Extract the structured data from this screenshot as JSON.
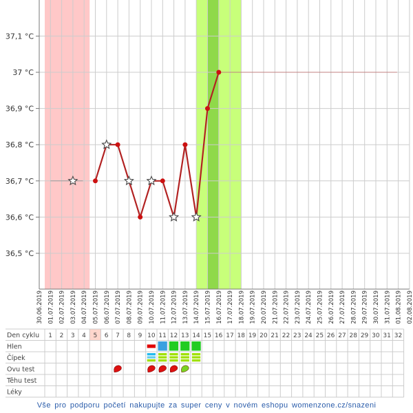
{
  "chart_data": {
    "type": "line",
    "x": [
      "30.06.2019",
      "01.07.2019",
      "02.07.2019",
      "03.07.2019",
      "04.07.2019",
      "05.07.2019",
      "06.07.2019",
      "07.07.2019",
      "08.07.2019",
      "09.07.2019",
      "10.07.2019",
      "11.07.2019",
      "12.07.2019",
      "13.07.2019",
      "14.07.2019",
      "15.07.2019",
      "16.07.2019",
      "17.07.2019",
      "18.07.2019",
      "19.07.2019",
      "20.07.2019",
      "21.07.2019",
      "22.07.2019",
      "23.07.2019",
      "24.07.2019",
      "25.07.2019",
      "26.07.2019",
      "27.07.2019",
      "28.07.2019",
      "29.07.2019",
      "30.07.2019",
      "31.07.2019",
      "01.08.2019",
      "02.08.2019"
    ],
    "y_ticks": [
      {
        "value": 37.1,
        "label": "37,1 °C"
      },
      {
        "value": 37.0,
        "label": "37 °C"
      },
      {
        "value": 36.9,
        "label": "36,9 °C"
      },
      {
        "value": 36.8,
        "label": "36,8 °C"
      },
      {
        "value": 36.7,
        "label": "36,7 °C"
      },
      {
        "value": 36.6,
        "label": "36,6 °C"
      },
      {
        "value": 36.5,
        "label": "36,5 °C"
      }
    ],
    "ylim": [
      36.4,
      37.2
    ],
    "grid": true,
    "series": [
      {
        "values": [
          {
            "x": "05.07.2019",
            "y": 36.7,
            "marker": "dot"
          },
          {
            "x": "06.07.2019",
            "y": 36.8,
            "marker": "star"
          },
          {
            "x": "07.07.2019",
            "y": 36.8,
            "marker": "dot"
          },
          {
            "x": "08.07.2019",
            "y": 36.7,
            "marker": "star"
          },
          {
            "x": "09.07.2019",
            "y": 36.6,
            "marker": "dot"
          },
          {
            "x": "10.07.2019",
            "y": 36.7,
            "marker": "star"
          },
          {
            "x": "11.07.2019",
            "y": 36.7,
            "marker": "dot"
          },
          {
            "x": "12.07.2019",
            "y": 36.6,
            "marker": "star"
          },
          {
            "x": "13.07.2019",
            "y": 36.8,
            "marker": "dot"
          },
          {
            "x": "14.07.2019",
            "y": 36.6,
            "marker": "star"
          },
          {
            "x": "15.07.2019",
            "y": 36.9,
            "marker": "dot"
          },
          {
            "x": "16.07.2019",
            "y": 37.0,
            "marker": "dot"
          }
        ],
        "color": "#b22222"
      }
    ],
    "excluded_points": [
      {
        "x": "03.07.2019",
        "y": 36.7,
        "marker": "star"
      }
    ],
    "reference_lines": [
      {
        "y": 36.7,
        "from": "01.07.2019",
        "to": "05.07.2019",
        "color": "#999999"
      },
      {
        "y": 37.0,
        "from": "16.07.2019",
        "to": "02.08.2019",
        "color": "#c08080"
      }
    ],
    "shaded_bands": [
      {
        "from": "30.06.2019",
        "to": "04.07.2019",
        "color": "#ffc8c8",
        "meaning": "menstruation"
      },
      {
        "from": "14.07.2019",
        "to": "18.07.2019",
        "color": "#c8ff7a",
        "meaning": "fertile window"
      },
      {
        "from": "15.07.2019",
        "to": "16.07.2019",
        "color": "#8fd94a",
        "meaning": "ovulation"
      }
    ],
    "marker_colors": {
      "line": "#b22222",
      "dot": "#cc1111",
      "star_fill": "#ffffff",
      "star_stroke": "#444444"
    }
  },
  "cycle_table": {
    "row_labels": [
      "Den cyklu",
      "Hlen",
      "Čípek",
      "Ovu test",
      "Těhu test",
      "Léky"
    ],
    "days": [
      "1",
      "2",
      "3",
      "4",
      "5",
      "6",
      "7",
      "8",
      "9",
      "10",
      "11",
      "12",
      "13",
      "14",
      "15",
      "16",
      "17",
      "18",
      "19",
      "20",
      "21",
      "22",
      "23",
      "24",
      "25",
      "26",
      "27",
      "28",
      "29",
      "30",
      "31",
      "32"
    ],
    "highlight_day_index": 4,
    "highlight_color": "#ffd6cc",
    "hlen": [
      {
        "day_index": 9,
        "color": "#e00000",
        "kind": "bar"
      },
      {
        "day_index": 10,
        "color": "#3aa0e0",
        "kind": "block"
      },
      {
        "day_index": 11,
        "color": "#22cc22",
        "kind": "block"
      },
      {
        "day_index": 12,
        "color": "#22cc22",
        "kind": "block"
      },
      {
        "day_index": 13,
        "color": "#22cc22",
        "kind": "block"
      }
    ],
    "cipek": [
      {
        "day_index": 9,
        "colors": [
          "#22bbee",
          "#66ccee",
          "#a0e000"
        ]
      },
      {
        "day_index": 10,
        "colors": [
          "#a0e000",
          "#a0e000",
          "#a0e000"
        ]
      },
      {
        "day_index": 11,
        "colors": [
          "#a0e000",
          "#a0e000",
          "#a0e000"
        ]
      },
      {
        "day_index": 12,
        "colors": [
          "#a0e000",
          "#a0e000",
          "#a0e000"
        ]
      },
      {
        "day_index": 13,
        "colors": [
          "#a0e000",
          "#a0e000",
          "#a0e000"
        ]
      }
    ],
    "ovu_test": [
      {
        "day_index": 6,
        "color": "#dd1111",
        "icon": "ovulation-test-icon"
      },
      {
        "day_index": 9,
        "color": "#dd1111",
        "icon": "ovulation-test-icon"
      },
      {
        "day_index": 10,
        "color": "#dd1111",
        "icon": "ovulation-test-icon"
      },
      {
        "day_index": 11,
        "color": "#dd1111",
        "icon": "ovulation-test-icon"
      },
      {
        "day_index": 12,
        "color": "#7bd322",
        "icon": "ovulation-test-icon"
      }
    ]
  },
  "footer": {
    "text": "Vše pro podporu početí nakupujte za super ceny v novém eshopu womenzone.cz/snazeni",
    "link_color": "#2a5caa"
  }
}
